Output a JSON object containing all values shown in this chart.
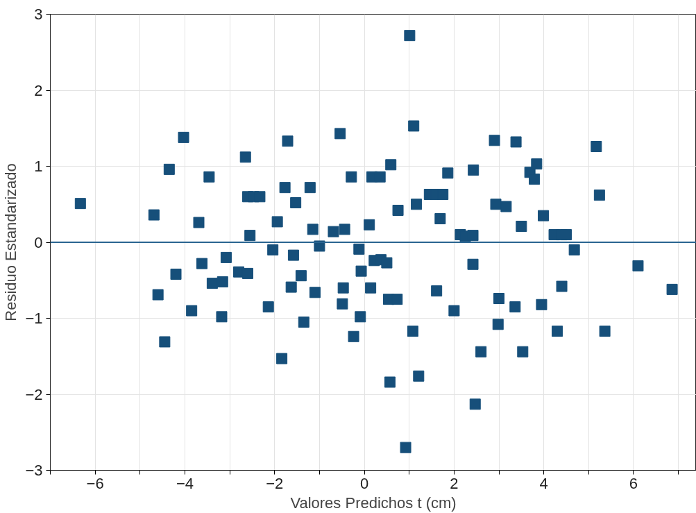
{
  "chart_data": {
    "type": "scatter",
    "xlabel": "Valores Predichos t (cm)",
    "ylabel": "Residuo Estandarizado",
    "marker": "square",
    "grid": true,
    "xlim": [
      -7,
      7.4
    ],
    "ylim": [
      -3,
      3
    ],
    "xticks": [
      {
        "value": -7,
        "label": null
      },
      -6,
      {
        "value": -5,
        "label": null
      },
      -4,
      {
        "value": -3,
        "label": null
      },
      -2,
      {
        "value": -1,
        "label": null
      },
      0,
      {
        "value": 1,
        "label": null
      },
      2,
      {
        "value": 3,
        "label": null
      },
      4,
      {
        "value": 5,
        "label": null
      },
      6,
      {
        "value": 7,
        "label": null
      }
    ],
    "yticks": [
      -3,
      -2,
      -1,
      0,
      1,
      2,
      3
    ],
    "ref_lines": [
      {
        "axis": "y",
        "value": 0,
        "color": "#2a6591"
      }
    ],
    "series": [
      {
        "color": "#164f7a",
        "x": [
          -6.33,
          -4.69,
          -4.6,
          -4.45,
          -4.35,
          -4.2,
          -4.03,
          -3.85,
          -3.69,
          -3.62,
          -3.46,
          -3.39,
          -3.16,
          -3.18,
          -3.08,
          -2.8,
          -2.65,
          -2.6,
          -2.55,
          -2.6,
          -2.47,
          -2.33,
          -2.14,
          -2.04,
          -1.94,
          -1.84,
          -1.77,
          -1.71,
          -1.58,
          -1.53,
          -1.63,
          -1.41,
          -1.35,
          -1.21,
          -1.15,
          -1.1,
          -1.0,
          -0.69,
          -0.54,
          -0.47,
          -0.49,
          -0.44,
          -0.29,
          -0.24,
          -0.12,
          -0.09,
          -0.07,
          0.11,
          0.14,
          0.17,
          0.22,
          0.35,
          0.37,
          0.5,
          0.54,
          0.57,
          0.59,
          0.73,
          0.75,
          0.92,
          1.01,
          1.1,
          1.08,
          1.16,
          1.21,
          1.45,
          1.6,
          1.75,
          1.61,
          1.69,
          1.86,
          2.0,
          2.14,
          2.25,
          2.42,
          2.42,
          2.43,
          2.47,
          2.6,
          2.9,
          2.93,
          3.0,
          2.98,
          3.16,
          3.36,
          3.38,
          3.5,
          3.53,
          3.69,
          3.79,
          3.84,
          3.95,
          3.99,
          4.23,
          4.3,
          4.4,
          4.4,
          4.5,
          4.68,
          5.17,
          5.24,
          5.36,
          6.1,
          6.86
        ],
        "values": [
          0.51,
          0.36,
          -0.69,
          -1.31,
          0.96,
          -0.42,
          1.38,
          -0.9,
          0.26,
          -0.28,
          0.86,
          -0.54,
          -0.52,
          -0.98,
          -0.2,
          -0.39,
          1.12,
          -0.41,
          0.09,
          0.6,
          0.6,
          0.6,
          -0.85,
          -0.1,
          0.27,
          -1.53,
          0.72,
          1.33,
          -0.17,
          0.52,
          -0.59,
          -0.44,
          -1.05,
          0.72,
          0.17,
          -0.66,
          -0.05,
          0.14,
          1.43,
          -0.6,
          -0.81,
          0.17,
          0.86,
          -1.24,
          -0.09,
          -0.98,
          -0.38,
          0.23,
          -0.6,
          0.86,
          -0.24,
          0.86,
          -0.23,
          -0.27,
          -0.75,
          -1.84,
          1.02,
          -0.75,
          0.42,
          -2.7,
          2.72,
          1.53,
          -1.17,
          0.5,
          -1.76,
          0.63,
          0.63,
          0.63,
          -0.64,
          0.31,
          0.91,
          -0.9,
          0.1,
          0.08,
          0.09,
          -0.29,
          0.95,
          -2.13,
          -1.44,
          1.34,
          0.5,
          -0.74,
          -1.08,
          0.47,
          -0.85,
          1.32,
          0.21,
          -1.44,
          0.92,
          0.83,
          1.03,
          -0.82,
          0.35,
          0.1,
          -1.17,
          0.1,
          -0.58,
          0.1,
          -0.1,
          1.26,
          0.62,
          -1.17,
          -0.31,
          -0.62
        ]
      }
    ]
  }
}
